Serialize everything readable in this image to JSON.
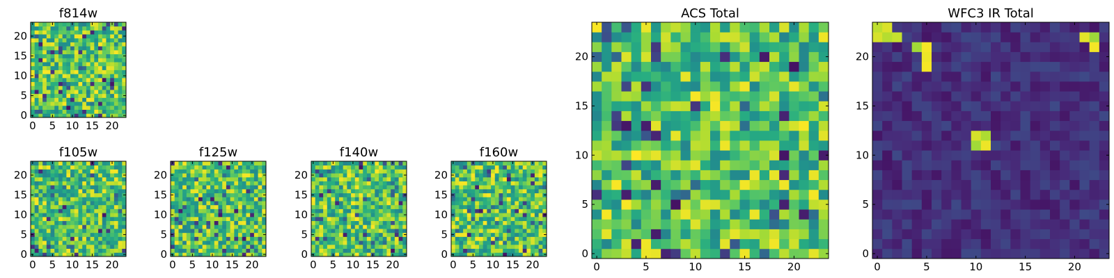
{
  "chart_data": [
    {
      "type": "heatmap",
      "title": "f814w",
      "colormap": "viridis",
      "size": [
        24,
        24
      ],
      "xlim": [
        0,
        24
      ],
      "ylim": [
        0,
        24
      ],
      "xticks": [
        0,
        5,
        10,
        15,
        20
      ],
      "yticks": [
        0,
        5,
        10,
        15,
        20
      ],
      "cell_values": "dense random field",
      "field": "f814w"
    },
    {
      "type": "heatmap",
      "title": "ACS Total",
      "colormap": "viridis",
      "size": [
        24,
        24
      ],
      "xlim": [
        0,
        24
      ],
      "ylim": [
        0,
        24
      ],
      "xticks": [
        0,
        5,
        10,
        15,
        20
      ],
      "yticks": [
        0,
        5,
        10,
        15,
        20
      ],
      "field": "acs"
    },
    {
      "type": "heatmap",
      "title": "WFC3 IR Total",
      "colormap": "viridis",
      "size": [
        24,
        24
      ],
      "xlim": [
        0,
        24
      ],
      "ylim": [
        0,
        24
      ],
      "xticks": [
        0,
        5,
        10,
        15,
        20
      ],
      "yticks": [
        0,
        5,
        10,
        15,
        20
      ],
      "field": "wfc3",
      "bright_pixels": [
        [
          0,
          23
        ],
        [
          1,
          23
        ],
        [
          0,
          22
        ],
        [
          1,
          22
        ],
        [
          2,
          22
        ],
        [
          4,
          21
        ],
        [
          5,
          21
        ],
        [
          5,
          20
        ],
        [
          5,
          19
        ],
        [
          21,
          22
        ],
        [
          22,
          22
        ],
        [
          22,
          21
        ],
        [
          10,
          12
        ],
        [
          11,
          12
        ],
        [
          10,
          11
        ],
        [
          11,
          11
        ]
      ]
    },
    {
      "type": "heatmap",
      "title": "f105w",
      "colormap": "viridis",
      "size": [
        24,
        24
      ],
      "xlim": [
        0,
        24
      ],
      "ylim": [
        0,
        24
      ],
      "xticks": [
        0,
        5,
        10,
        15,
        20
      ],
      "yticks": [
        0,
        5,
        10,
        15,
        20
      ],
      "field": "f105w"
    },
    {
      "type": "heatmap",
      "title": "f125w",
      "colormap": "viridis",
      "size": [
        24,
        24
      ],
      "xlim": [
        0,
        24
      ],
      "ylim": [
        0,
        24
      ],
      "xticks": [
        0,
        5,
        10,
        15,
        20
      ],
      "yticks": [
        0,
        5,
        10,
        15,
        20
      ],
      "field": "f125w"
    },
    {
      "type": "heatmap",
      "title": "f140w",
      "colormap": "viridis",
      "size": [
        24,
        24
      ],
      "xlim": [
        0,
        24
      ],
      "ylim": [
        0,
        24
      ],
      "xticks": [
        0,
        5,
        10,
        15,
        20
      ],
      "yticks": [
        0,
        5,
        10,
        15,
        20
      ],
      "field": "f140w"
    },
    {
      "type": "heatmap",
      "title": "f160w",
      "colormap": "viridis",
      "size": [
        24,
        24
      ],
      "xlim": [
        0,
        24
      ],
      "ylim": [
        0,
        24
      ],
      "xticks": [
        0,
        5,
        10,
        15,
        20
      ],
      "yticks": [
        0,
        5,
        10,
        15,
        20
      ],
      "field": "f160w"
    }
  ],
  "colors": {
    "viridis": [
      "#440154",
      "#472c7a",
      "#3b528b",
      "#2c728e",
      "#21908d",
      "#27ad81",
      "#5cc863",
      "#aadc32",
      "#fde725"
    ]
  }
}
